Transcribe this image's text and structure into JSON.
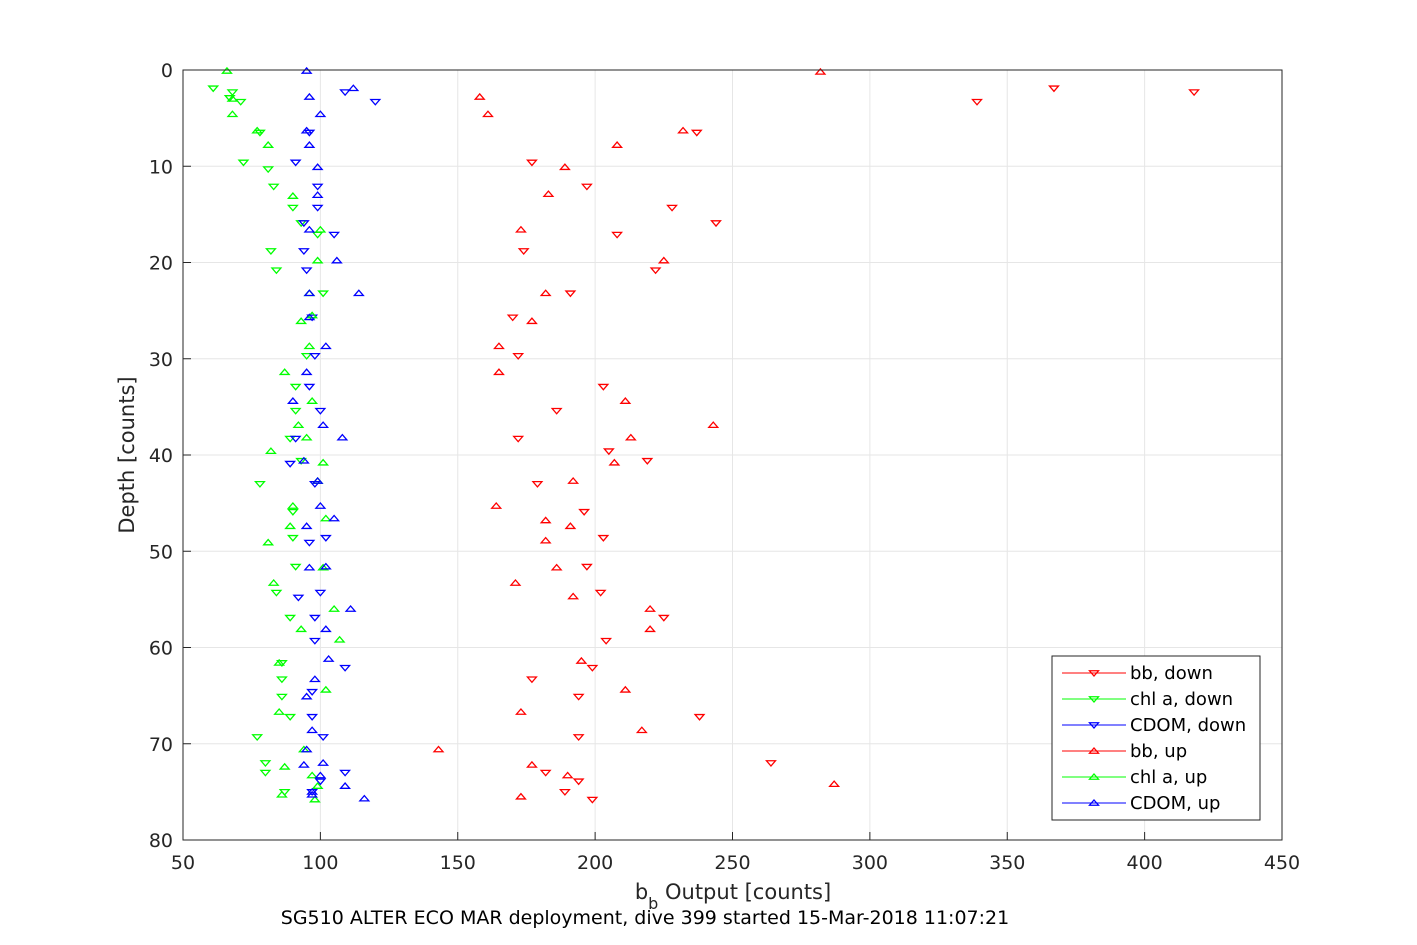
{
  "chart_data": {
    "type": "scatter",
    "xlabel": "b",
    "xlabel_sub": "b",
    "xlabel_suffix": " Output [counts]",
    "ylabel": "Depth [counts]",
    "caption": "SG510 ALTER ECO MAR deployment, dive 399 started 15-Mar-2018 11:07:21",
    "xlim": [
      50,
      450
    ],
    "ylim": [
      0,
      80
    ],
    "y_reversed": true,
    "grid": true,
    "legend_position": "bottom-right",
    "x_ticks": [
      50,
      100,
      150,
      200,
      250,
      300,
      350,
      400,
      450
    ],
    "y_ticks": [
      0,
      10,
      20,
      30,
      40,
      50,
      60,
      70,
      80
    ],
    "series": [
      {
        "name": "bb, down",
        "color": "#ff0000",
        "marker": "triangle-down",
        "points": [
          [
            367,
            1.9
          ],
          [
            418,
            2.3
          ],
          [
            339,
            3.3
          ],
          [
            237,
            6.5
          ],
          [
            177,
            9.6
          ],
          [
            197,
            12.1
          ],
          [
            228,
            14.3
          ],
          [
            244,
            15.9
          ],
          [
            208,
            17.1
          ],
          [
            174,
            18.8
          ],
          [
            222,
            20.8
          ],
          [
            191,
            23.2
          ],
          [
            170,
            25.7
          ],
          [
            172,
            29.7
          ],
          [
            203,
            32.9
          ],
          [
            186,
            35.4
          ],
          [
            172,
            38.3
          ],
          [
            205,
            39.6
          ],
          [
            219,
            40.6
          ],
          [
            179,
            43.0
          ],
          [
            196,
            45.9
          ],
          [
            203,
            48.6
          ],
          [
            197,
            51.6
          ],
          [
            202,
            54.3
          ],
          [
            225,
            56.9
          ],
          [
            204,
            59.3
          ],
          [
            199,
            62.1
          ],
          [
            177,
            63.3
          ],
          [
            194,
            65.1
          ],
          [
            238,
            67.2
          ],
          [
            194,
            69.3
          ],
          [
            264,
            72.0
          ],
          [
            182,
            73.0
          ],
          [
            194,
            73.9
          ],
          [
            189,
            75.0
          ],
          [
            199,
            75.8
          ]
        ]
      },
      {
        "name": "chl a, down",
        "color": "#00ff00",
        "marker": "triangle-down",
        "points": [
          [
            61,
            1.9
          ],
          [
            68,
            2.3
          ],
          [
            67,
            2.9
          ],
          [
            71,
            3.3
          ],
          [
            78,
            6.5
          ],
          [
            72,
            9.6
          ],
          [
            81,
            10.3
          ],
          [
            83,
            12.1
          ],
          [
            90,
            14.3
          ],
          [
            93,
            15.9
          ],
          [
            99,
            17.1
          ],
          [
            82,
            18.8
          ],
          [
            84,
            20.8
          ],
          [
            101,
            23.2
          ],
          [
            95,
            29.7
          ],
          [
            91,
            32.9
          ],
          [
            91,
            35.4
          ],
          [
            89,
            38.3
          ],
          [
            93,
            40.6
          ],
          [
            78,
            43.0
          ],
          [
            90,
            45.9
          ],
          [
            90,
            48.6
          ],
          [
            91,
            51.6
          ],
          [
            84,
            54.3
          ],
          [
            89,
            56.9
          ],
          [
            86,
            61.6
          ],
          [
            86,
            63.3
          ],
          [
            86,
            65.1
          ],
          [
            89,
            67.2
          ],
          [
            77,
            69.3
          ],
          [
            80,
            72.0
          ],
          [
            80,
            73.0
          ],
          [
            87,
            75.0
          ]
        ]
      },
      {
        "name": "CDOM, down",
        "color": "#0000ff",
        "marker": "triangle-down",
        "points": [
          [
            109,
            2.3
          ],
          [
            120,
            3.3
          ],
          [
            96,
            6.5
          ],
          [
            91,
            9.6
          ],
          [
            99,
            12.1
          ],
          [
            99,
            14.3
          ],
          [
            94,
            15.9
          ],
          [
            105,
            17.1
          ],
          [
            94,
            18.8
          ],
          [
            95,
            20.8
          ],
          [
            97,
            25.7
          ],
          [
            98,
            29.7
          ],
          [
            96,
            32.9
          ],
          [
            100,
            35.4
          ],
          [
            91,
            38.3
          ],
          [
            89,
            40.9
          ],
          [
            98,
            43.0
          ],
          [
            102,
            48.6
          ],
          [
            96,
            49.1
          ],
          [
            100,
            54.3
          ],
          [
            92,
            54.8
          ],
          [
            98,
            56.9
          ],
          [
            98,
            59.3
          ],
          [
            109,
            62.1
          ],
          [
            97,
            64.6
          ],
          [
            97,
            67.2
          ],
          [
            101,
            69.3
          ],
          [
            109,
            73.0
          ],
          [
            100,
            73.9
          ],
          [
            97,
            75.0
          ]
        ]
      },
      {
        "name": "bb, up",
        "color": "#ff0000",
        "marker": "triangle-up",
        "points": [
          [
            282,
            0.2
          ],
          [
            158,
            2.8
          ],
          [
            161,
            4.6
          ],
          [
            232,
            6.3
          ],
          [
            208,
            7.8
          ],
          [
            189,
            10.1
          ],
          [
            183,
            12.9
          ],
          [
            173,
            16.6
          ],
          [
            225,
            19.8
          ],
          [
            182,
            23.2
          ],
          [
            177,
            26.1
          ],
          [
            165,
            28.7
          ],
          [
            165,
            31.4
          ],
          [
            211,
            34.4
          ],
          [
            243,
            36.9
          ],
          [
            213,
            38.2
          ],
          [
            207,
            40.8
          ],
          [
            192,
            42.7
          ],
          [
            164,
            45.3
          ],
          [
            182,
            46.8
          ],
          [
            191,
            47.4
          ],
          [
            182,
            48.9
          ],
          [
            186,
            51.7
          ],
          [
            171,
            53.3
          ],
          [
            192,
            54.7
          ],
          [
            220,
            56.0
          ],
          [
            220,
            58.1
          ],
          [
            195,
            61.4
          ],
          [
            211,
            64.4
          ],
          [
            173,
            66.7
          ],
          [
            217,
            68.6
          ],
          [
            143,
            70.6
          ],
          [
            177,
            72.2
          ],
          [
            190,
            73.3
          ],
          [
            287,
            74.2
          ],
          [
            173,
            75.5
          ]
        ]
      },
      {
        "name": "chl a, up",
        "color": "#00ff00",
        "marker": "triangle-up",
        "points": [
          [
            66,
            0.1
          ],
          [
            68,
            3.0
          ],
          [
            68,
            4.6
          ],
          [
            77,
            6.3
          ],
          [
            81,
            7.8
          ],
          [
            90,
            13.1
          ],
          [
            100,
            16.6
          ],
          [
            99,
            19.8
          ],
          [
            96,
            23.2
          ],
          [
            97,
            25.5
          ],
          [
            93,
            26.1
          ],
          [
            96,
            28.7
          ],
          [
            87,
            31.4
          ],
          [
            97,
            34.4
          ],
          [
            92,
            36.9
          ],
          [
            95,
            38.2
          ],
          [
            82,
            39.6
          ],
          [
            101,
            40.8
          ],
          [
            99,
            42.7
          ],
          [
            90,
            45.3
          ],
          [
            102,
            46.6
          ],
          [
            89,
            47.4
          ],
          [
            81,
            49.1
          ],
          [
            101,
            51.7
          ],
          [
            83,
            53.3
          ],
          [
            105,
            56.0
          ],
          [
            93,
            58.1
          ],
          [
            107,
            59.2
          ],
          [
            85,
            61.6
          ],
          [
            102,
            64.4
          ],
          [
            85,
            66.7
          ],
          [
            94,
            70.6
          ],
          [
            87,
            72.4
          ],
          [
            97,
            73.3
          ],
          [
            99,
            74.4
          ],
          [
            86,
            75.3
          ],
          [
            98,
            75.8
          ]
        ]
      },
      {
        "name": "CDOM, up",
        "color": "#0000ff",
        "marker": "triangle-up",
        "points": [
          [
            95,
            0.1
          ],
          [
            112,
            1.9
          ],
          [
            96,
            2.8
          ],
          [
            100,
            4.6
          ],
          [
            95,
            6.3
          ],
          [
            96,
            7.8
          ],
          [
            99,
            10.1
          ],
          [
            99,
            13.0
          ],
          [
            96,
            16.6
          ],
          [
            106,
            19.8
          ],
          [
            96,
            23.2
          ],
          [
            114,
            23.2
          ],
          [
            96,
            25.7
          ],
          [
            102,
            28.7
          ],
          [
            95,
            31.4
          ],
          [
            90,
            34.4
          ],
          [
            101,
            36.9
          ],
          [
            108,
            38.2
          ],
          [
            94,
            40.6
          ],
          [
            99,
            42.7
          ],
          [
            100,
            45.3
          ],
          [
            105,
            46.6
          ],
          [
            95,
            47.4
          ],
          [
            102,
            51.6
          ],
          [
            96,
            51.7
          ],
          [
            111,
            56.0
          ],
          [
            102,
            58.1
          ],
          [
            103,
            61.2
          ],
          [
            98,
            63.3
          ],
          [
            95,
            65.1
          ],
          [
            97,
            68.6
          ],
          [
            95,
            70.6
          ],
          [
            94,
            72.2
          ],
          [
            101,
            72.0
          ],
          [
            100,
            73.3
          ],
          [
            109,
            74.4
          ],
          [
            97,
            75.3
          ],
          [
            116,
            75.7
          ],
          [
            97,
            75.0
          ]
        ]
      }
    ]
  }
}
